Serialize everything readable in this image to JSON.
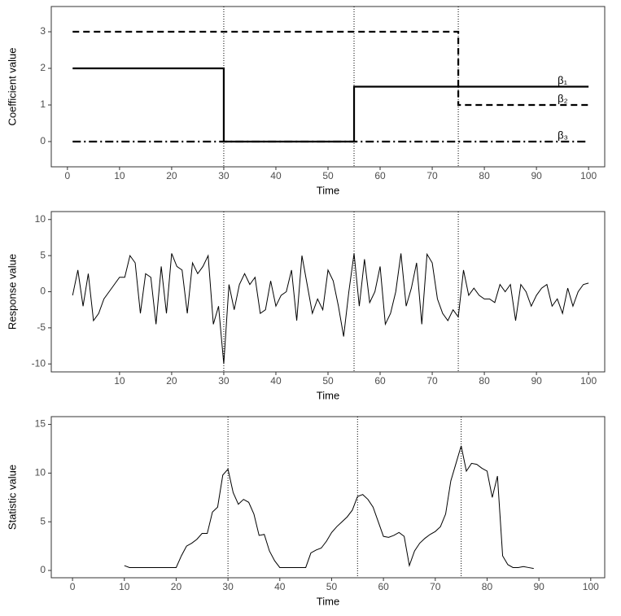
{
  "chart_data": [
    {
      "type": "line",
      "xlabel": "Time",
      "ylabel": "Coefficient value",
      "xlim": [
        -3.1,
        103.1
      ],
      "ylim": [
        -0.69,
        3.69
      ],
      "xticks": [
        0,
        10,
        20,
        30,
        40,
        50,
        60,
        70,
        80,
        90,
        100
      ],
      "yticks": [
        0,
        1,
        2,
        3
      ],
      "vlines": [
        30,
        55,
        75
      ],
      "series": [
        {
          "name": "β₁",
          "color": "#000000",
          "style": "solid",
          "x": [
            1,
            30,
            30,
            55,
            55,
            100
          ],
          "values": [
            2,
            2,
            0,
            0,
            1.5,
            1.5
          ]
        },
        {
          "name": "β₂",
          "color": "#000000",
          "style": "dashed",
          "x": [
            1,
            75,
            75,
            100
          ],
          "values": [
            3,
            3,
            1,
            1
          ]
        },
        {
          "name": "β₃",
          "color": "#000000",
          "style": "dashdot",
          "x": [
            1,
            100
          ],
          "values": [
            0,
            0
          ]
        }
      ]
    },
    {
      "type": "line",
      "xlabel": "Time",
      "ylabel": "Response value",
      "xlim": [
        -3.1,
        103.1
      ],
      "ylim": [
        -11.1,
        11.1
      ],
      "xticks": [
        10,
        20,
        30,
        40,
        50,
        60,
        70,
        80,
        90,
        100
      ],
      "yticks": [
        -10,
        -5,
        0,
        5,
        10
      ],
      "vlines": [
        30,
        55,
        75
      ],
      "series": [
        {
          "color": "#000000",
          "style": "thin",
          "x": [
            1,
            2,
            3,
            4,
            5,
            6,
            7,
            8,
            9,
            10,
            11,
            12,
            13,
            14,
            15,
            16,
            17,
            18,
            19,
            20,
            21,
            22,
            23,
            24,
            25,
            26,
            27,
            28,
            29,
            30,
            31,
            32,
            33,
            34,
            35,
            36,
            37,
            38,
            39,
            40,
            41,
            42,
            43,
            44,
            45,
            46,
            47,
            48,
            49,
            50,
            51,
            52,
            53,
            54,
            55,
            56,
            57,
            58,
            59,
            60,
            61,
            62,
            63,
            64,
            65,
            66,
            67,
            68,
            69,
            70,
            71,
            72,
            73,
            74,
            75,
            76,
            77,
            78,
            79,
            80,
            81,
            82,
            83,
            84,
            85,
            86,
            87,
            88,
            89,
            90,
            91,
            92,
            93,
            94,
            95,
            96,
            97,
            98,
            99,
            100
          ],
          "values": [
            -0.5,
            3,
            -2,
            2.5,
            -4,
            -3,
            -1,
            0,
            1,
            2,
            2,
            5,
            4,
            -3,
            2.5,
            2,
            -4.5,
            3.5,
            -3,
            5.3,
            3.5,
            3,
            -3,
            4,
            2.5,
            3.5,
            5,
            -4.5,
            -2,
            -10,
            1,
            -2.5,
            1,
            2.5,
            1,
            2,
            -3,
            -2.5,
            1.5,
            -2,
            -0.5,
            0,
            3,
            -4,
            5,
            1,
            -3,
            -1,
            -2.5,
            3,
            1.5,
            -2,
            -6.2,
            0,
            5.3,
            -2,
            4.5,
            -1.5,
            0,
            3.5,
            -4.5,
            -3,
            0,
            5.3,
            -2,
            0.5,
            4,
            -4.5,
            5.2,
            4,
            -1,
            -3,
            -4,
            -2.5,
            -3.5,
            3,
            -0.5,
            0.5,
            -0.5,
            -1,
            -1,
            -1.5,
            1,
            0,
            1,
            -4,
            1,
            0,
            -2,
            -0.5,
            0.5,
            1,
            -2,
            -1,
            -3,
            0.5,
            -2,
            0,
            1,
            1.2
          ]
        }
      ]
    },
    {
      "type": "line",
      "xlabel": "Time",
      "ylabel": "Statistic value",
      "xlim": [
        -4.1,
        102.7
      ],
      "ylim": [
        -0.75,
        15.8
      ],
      "xticks": [
        0,
        10,
        20,
        30,
        40,
        50,
        60,
        70,
        80,
        90,
        100
      ],
      "yticks": [
        0,
        5,
        10,
        15
      ],
      "vlines": [
        30,
        55,
        75
      ],
      "series": [
        {
          "color": "#000000",
          "style": "thin",
          "x": [
            10,
            11,
            12,
            13,
            14,
            15,
            16,
            17,
            18,
            19,
            20,
            21,
            22,
            23,
            24,
            25,
            26,
            27,
            28,
            29,
            30,
            31,
            32,
            33,
            34,
            35,
            36,
            37,
            38,
            39,
            40,
            41,
            42,
            43,
            44,
            45,
            46,
            47,
            48,
            49,
            50,
            51,
            52,
            53,
            54,
            55,
            56,
            57,
            58,
            59,
            60,
            61,
            62,
            63,
            64,
            65,
            66,
            67,
            68,
            69,
            70,
            71,
            72,
            73,
            74,
            75,
            76,
            77,
            78,
            79,
            80,
            81,
            82,
            83,
            84,
            85,
            86,
            87,
            88,
            89
          ],
          "values": [
            0.5,
            0.3,
            0.3,
            0.3,
            0.3,
            0.3,
            0.3,
            0.3,
            0.3,
            0.3,
            0.3,
            1.5,
            2.5,
            2.8,
            3.2,
            3.8,
            3.8,
            6,
            6.5,
            9.8,
            10.4,
            8,
            6.8,
            7.3,
            7,
            5.8,
            3.6,
            3.7,
            2,
            1,
            0.3,
            0.3,
            0.3,
            0.3,
            0.3,
            0.3,
            1.8,
            2.1,
            2.3,
            3,
            3.9,
            4.5,
            5,
            5.5,
            6.2,
            7.6,
            7.8,
            7.3,
            6.5,
            5,
            3.5,
            3.4,
            3.6,
            3.9,
            3.5,
            0.5,
            2,
            2.8,
            3.3,
            3.7,
            4,
            4.5,
            5.8,
            9.2,
            11,
            12.8,
            10.2,
            11,
            10.9,
            10.5,
            10.2,
            7.5,
            9.7,
            1.5,
            0.6,
            0.3,
            0.3,
            0.4,
            0.3,
            0.2
          ]
        }
      ]
    }
  ]
}
